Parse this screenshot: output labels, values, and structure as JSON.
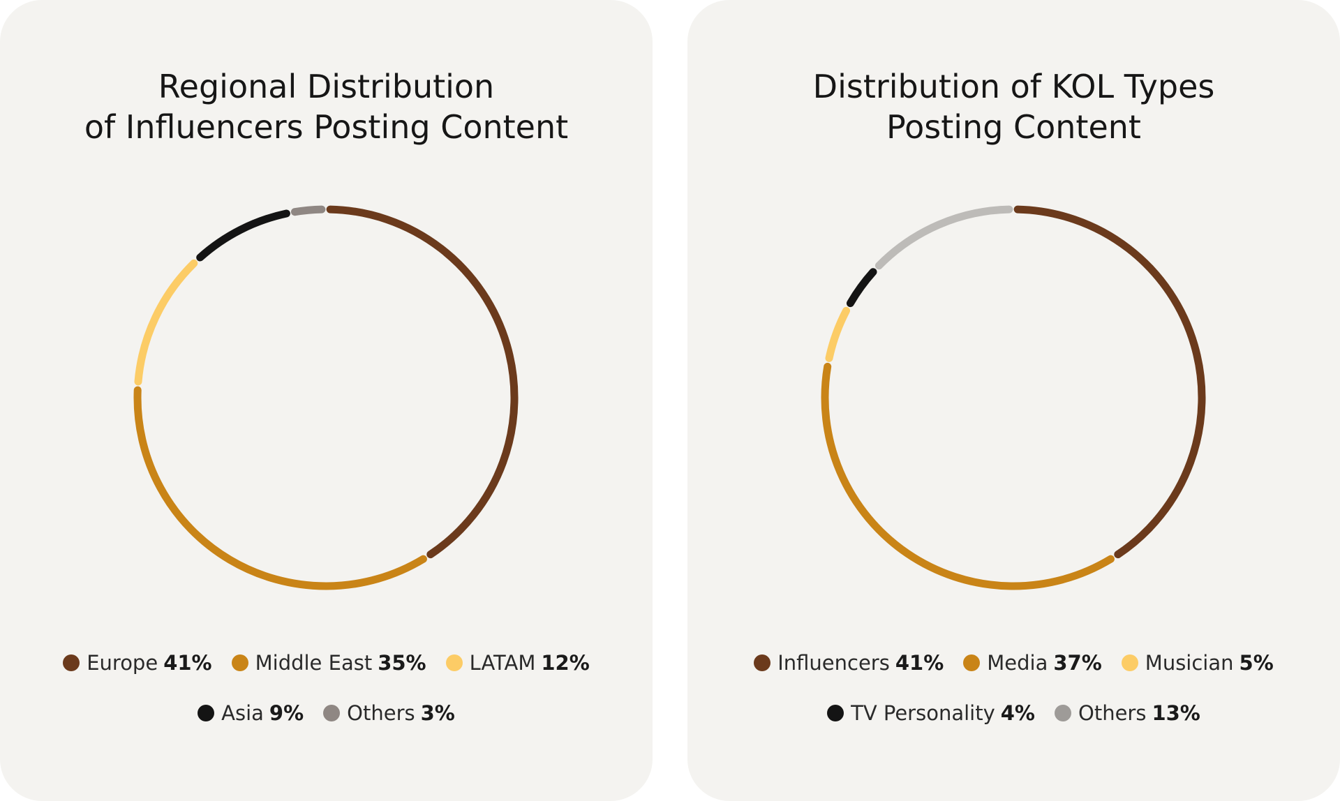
{
  "chart_data": [
    {
      "type": "pie",
      "title_lines": [
        "Regional Distribution",
        "of Influencers Posting Content"
      ],
      "categories": [
        "Europe",
        "Middle East",
        "LATAM",
        "Asia",
        "Others"
      ],
      "values": [
        41,
        35,
        12,
        9,
        3
      ],
      "value_labels": [
        "41%",
        "35%",
        "12%",
        "9%",
        "3%"
      ],
      "colors": [
        "#6b3a1c",
        "#c98417",
        "#fccc66",
        "#141414",
        "#8f8783"
      ],
      "legend_rows": [
        [
          0,
          1,
          2
        ],
        [
          3,
          4
        ]
      ],
      "legend_placement": "bottom"
    },
    {
      "type": "pie",
      "title_lines": [
        "Distribution of KOL Types",
        "Posting Content"
      ],
      "categories": [
        "Influencers",
        "Media",
        "Musician",
        "TV Personality",
        "Others"
      ],
      "values": [
        41,
        37,
        5,
        4,
        13
      ],
      "value_labels": [
        "41%",
        "37%",
        "5%",
        "4%",
        "13%"
      ],
      "colors": [
        "#6b3a1c",
        "#c98417",
        "#fccc66",
        "#141414",
        "#bdbbb8"
      ],
      "legend_colors": [
        "#6b3a1c",
        "#c98417",
        "#fccc66",
        "#141414",
        "#9e9b98"
      ],
      "legend_rows": [
        [
          0,
          1,
          2
        ],
        [
          3,
          4
        ]
      ],
      "legend_placement": "bottom"
    }
  ]
}
